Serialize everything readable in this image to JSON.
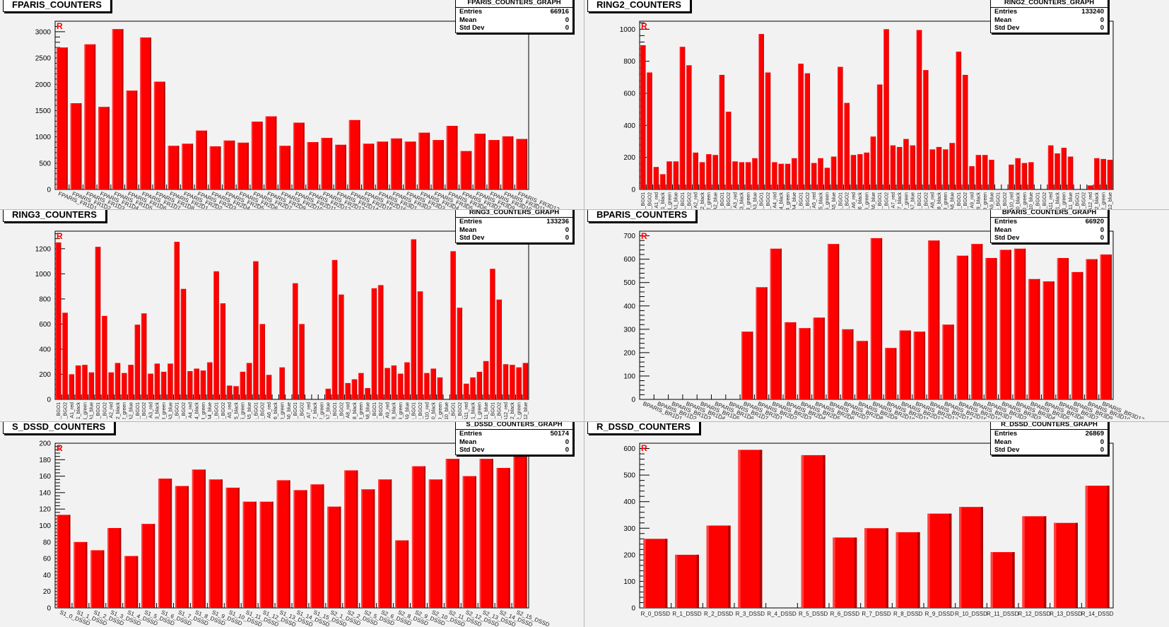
{
  "marker": "R",
  "chart_data": [
    {
      "type": "bar",
      "title": "FPARIS_COUNTERS",
      "stats": {
        "name": "FPARIS_COUNTERS_GRAPH",
        "entries_label": "Entries",
        "entries": "66916",
        "mean_label": "Mean",
        "mean": "0",
        "std_label": "Std Dev",
        "std": "0"
      },
      "ylim": [
        0,
        3200
      ],
      "ytick_step": 500,
      "label_style": "slant",
      "categories": [
        "FPARIS_FR1D1",
        "FPARIS_FR1D2",
        "FPARIS_FR1D3",
        "FPARIS_FR1D4",
        "FPARIS_FR1D5",
        "FPARIS_FR1D6",
        "FPARIS_FR1D7",
        "FPARIS_FR1D8",
        "FPARIS_FR2D1",
        "FPARIS_FR2D2",
        "FPARIS_FR2D3",
        "FPARIS_FR2D4",
        "FPARIS_FR2D5",
        "FPARIS_FR2D6",
        "FPARIS_FR2D7",
        "FPARIS_FR2D9",
        "FPARIS_FR2D10",
        "FPARIS_FR2D11",
        "FPARIS_FR2D12",
        "FPARIS_FR2D13",
        "FPARIS_FR2D14",
        "FPARIS_FR2D15",
        "FPARIS_FR2D16",
        "FPARIS_FR3D1",
        "FPARIS_FR3D2",
        "FPARIS_FR3D3",
        "FPARIS_FR3D4",
        "FPARIS_FR3D5",
        "FPARIS_FR3D6",
        "FPARIS_FR3D7",
        "FPARIS_FR3D9",
        "FPARIS_FR3D10",
        "FPARIS_FR3D11",
        "FPARIS_FR3D12"
      ],
      "values": [
        2700,
        1640,
        2760,
        1570,
        3050,
        1880,
        2890,
        2050,
        830,
        870,
        1120,
        820,
        930,
        890,
        1290,
        1390,
        830,
        1270,
        900,
        980,
        850,
        1320,
        870,
        910,
        970,
        910,
        1080,
        940,
        1210,
        730,
        1060,
        940,
        1010,
        960
      ]
    },
    {
      "type": "bar",
      "title": "RING2_COUNTERS",
      "stats": {
        "name": "RING2_COUNTERS_GRAPH",
        "entries_label": "Entries",
        "entries": "133240",
        "mean_label": "Mean",
        "mean": "0",
        "std_label": "Std Dev",
        "std": "0"
      },
      "ylim": [
        0,
        1050
      ],
      "ytick_step": 200,
      "label_style": "vertical",
      "categories": [
        "1_BGO1",
        "1_BGO2",
        "A1_red",
        "A1_black",
        "A1_green",
        "A1_blue",
        "2_BGO1",
        "2_BGO2",
        "A2_red",
        "A2_black",
        "A2_green",
        "A2_blue",
        "3_BGO1",
        "3_BGO2",
        "A3_red",
        "A3_black",
        "A3_green",
        "A3_blue",
        "4_BGO1",
        "4_BGO2",
        "A4_red",
        "A4_black",
        "A4_green",
        "A4_blue",
        "5_BGO1",
        "5_BGO2",
        "A5_red",
        "A5_black",
        "A5_green",
        "A5_blue",
        "6_BGO1",
        "6_BGO2",
        "A6_red",
        "A6_black",
        "A6_green",
        "A6_blue",
        "7_BGO1",
        "7_BGO2",
        "A7_red",
        "A7_black",
        "A7_green",
        "A7_blue",
        "8_BGO1",
        "8_BGO2",
        "A8_red",
        "A8_black",
        "A8_green",
        "A8_blue",
        "9_BGO1",
        "9_BGO2",
        "A9_red",
        "A9_black",
        "A9_green",
        "A9_blue",
        "10_BGO1",
        "10_BGO2",
        "A10_red",
        "A10_black",
        "A10_green",
        "A10_blue",
        "11_BGO1",
        "11_BGO2",
        "A11_red",
        "A11_black",
        "A11_green",
        "A11_blue",
        "12_BGO1",
        "12_BGO2",
        "A12_red",
        "A12_black",
        "A12_green",
        "A12_blue"
      ],
      "values": [
        900,
        730,
        140,
        95,
        175,
        175,
        890,
        775,
        230,
        170,
        220,
        215,
        715,
        485,
        175,
        170,
        170,
        195,
        970,
        730,
        170,
        160,
        160,
        195,
        785,
        725,
        165,
        195,
        135,
        205,
        765,
        540,
        215,
        220,
        230,
        330,
        655,
        1000,
        275,
        265,
        315,
        275,
        995,
        745,
        250,
        265,
        250,
        290,
        860,
        715,
        145,
        215,
        215,
        185,
        0,
        0,
        155,
        195,
        165,
        170,
        0,
        0,
        275,
        225,
        260,
        205,
        0,
        0,
        25,
        195,
        190,
        185
      ]
    },
    {
      "type": "bar",
      "title": "RING3_COUNTERS",
      "stats": {
        "name": "RING3_COUNTERS_GRAPH",
        "entries_label": "Entries",
        "entries": "133236",
        "mean_label": "Mean",
        "mean": "0",
        "std_label": "Std Dev",
        "std": "0"
      },
      "ylim": [
        0,
        1340
      ],
      "ytick_step": 200,
      "label_style": "vertical",
      "categories": [
        "1_BGO1",
        "1_BGO2",
        "A1_red",
        "A1_black",
        "A1_green",
        "A1_blue",
        "2_BGO1",
        "2_BGO2",
        "A2_red",
        "A2_black",
        "A2_green",
        "A2_blue",
        "3_BGO1",
        "3_BGO2",
        "A3_red",
        "A3_black",
        "A3_green",
        "A3_blue",
        "4_BGO1",
        "4_BGO2",
        "A4_red",
        "A4_black",
        "A4_green",
        "A4_blue",
        "5_BGO1",
        "5_BGO2",
        "A5_red",
        "A5_black",
        "A5_green",
        "A5_blue",
        "6_BGO1",
        "6_BGO2",
        "A6_red",
        "A6_black",
        "A6_green",
        "A6_blue",
        "7_BGO1",
        "7_BGO2",
        "A7_red",
        "A7_black",
        "A7_green",
        "A7_blue",
        "8_BGO1",
        "8_BGO2",
        "A8_red",
        "A8_black",
        "A8_green",
        "A8_blue",
        "9_BGO1",
        "9_BGO2",
        "A9_red",
        "A9_black",
        "A9_green",
        "A9_blue",
        "10_BGO1",
        "10_BGO2",
        "A10_red",
        "A10_black",
        "A10_green",
        "A10_blue",
        "11_BGO1",
        "11_BGO2",
        "A11_red",
        "A11_black",
        "A11_green",
        "A11_blue",
        "12_BGO1",
        "12_BGO2",
        "A12_red",
        "A12_black",
        "A12_green",
        "A12_blue"
      ],
      "values": [
        1250,
        690,
        200,
        270,
        275,
        215,
        1215,
        665,
        215,
        290,
        210,
        275,
        595,
        685,
        205,
        285,
        220,
        285,
        1255,
        880,
        225,
        245,
        230,
        295,
        1020,
        765,
        110,
        105,
        220,
        290,
        1100,
        600,
        195,
        0,
        255,
        0,
        925,
        600,
        0,
        0,
        0,
        85,
        1110,
        835,
        130,
        160,
        210,
        90,
        885,
        910,
        250,
        270,
        205,
        295,
        1275,
        860,
        210,
        245,
        175,
        0,
        1180,
        730,
        125,
        175,
        220,
        305,
        1040,
        795,
        280,
        275,
        255,
        290
      ]
    },
    {
      "type": "bar",
      "title": "BPARIS_COUNTERS",
      "stats": {
        "name": "BPARIS_COUNTERS_GRAPH",
        "entries_label": "Entries",
        "entries": "66920",
        "mean_label": "Mean",
        "mean": "0",
        "std_label": "Std Dev",
        "std": "0"
      },
      "ylim": [
        0,
        720
      ],
      "ytick_step": 100,
      "label_style": "slant",
      "categories": [
        "BPARIS_BR1D1",
        "BPARIS_BR1D2",
        "BPARIS_BR1D3",
        "BPARIS_BR1D4",
        "BPARIS_BR1D5",
        "BPARIS_BR1D6",
        "BPARIS_BR1D7",
        "BPARIS_BR2D1",
        "BPARIS_BR2D2",
        "BPARIS_BR2D3",
        "BPARIS_BR2D4",
        "BPARIS_BR2D5",
        "BPARIS_BR2D6",
        "BPARIS_BR2D7",
        "BPARIS_BR2D8",
        "BPARIS_BR2D9",
        "BPARIS_BR2D10",
        "BPARIS_BR2D11",
        "BPARIS_BR2D12",
        "BPARIS_BR2D13",
        "BPARIS_BR2D14",
        "BPARIS_BR2D15",
        "BPARIS_BR2D16",
        "BPARIS_BR3D1",
        "BPARIS_BR3D2",
        "BPARIS_BR3D3",
        "BPARIS_BR3D4",
        "BPARIS_BR3D5",
        "BPARIS_BR3D6",
        "BPARIS_BR3D7",
        "BPARIS_BR3D9",
        "BPARIS_BR3D10",
        "BPARIS_BR3D12"
      ],
      "values": [
        0,
        0,
        0,
        0,
        0,
        0,
        0,
        290,
        480,
        645,
        330,
        305,
        350,
        665,
        300,
        250,
        690,
        220,
        295,
        290,
        680,
        320,
        615,
        665,
        605,
        640,
        645,
        515,
        505,
        605,
        545,
        600,
        620
      ]
    },
    {
      "type": "bar",
      "title": "S_DSSD_COUNTERS",
      "stats": {
        "name": "S_DSSD_COUNTERS_GRAPH",
        "entries_label": "Entries",
        "entries": "50174",
        "mean_label": "Mean",
        "mean": "0",
        "std_label": "Std Dev",
        "std": "0"
      },
      "ylim": [
        0,
        200
      ],
      "ytick_step": 20,
      "label_style": "slant",
      "categories": [
        "S1_0_DSSD",
        "S1_1_DSSD",
        "S1_2_DSSD",
        "S1_3_DSSD",
        "S1_4_DSSD",
        "S1_5_DSSD",
        "S1_6_DSSD",
        "S1_7_DSSD",
        "S1_8_DSSD",
        "S1_9_DSSD",
        "S1_10_DSSD",
        "S1_11_DSSD",
        "S1_12_DSSD",
        "S1_13_DSSD",
        "S1_14_DSSD",
        "S1_15_DSSD",
        "S2_1_DSSD",
        "S2_2_DSSD",
        "S2_5_DSSD",
        "S2_6_DSSD",
        "S2_8_DSSD",
        "S2_9_DSSD",
        "S2_10_DSSD",
        "S2_11_DSSD",
        "S2_12_DSSD",
        "S2_13_DSSD",
        "S2_14_DSSD",
        "S2_15_DSSD"
      ],
      "values": [
        113,
        80,
        70,
        97,
        63,
        102,
        157,
        148,
        168,
        156,
        146,
        129,
        129,
        155,
        143,
        150,
        123,
        167,
        144,
        156,
        82,
        172,
        156,
        181,
        160,
        181,
        170,
        185
      ]
    },
    {
      "type": "bar",
      "title": "R_DSSD_COUNTERS",
      "stats": {
        "name": "R_DSSD_COUNTERS_GRAPH",
        "entries_label": "Entries",
        "entries": "26869",
        "mean_label": "Mean",
        "mean": "0",
        "std_label": "Std Dev",
        "std": "0"
      },
      "ylim": [
        0,
        620
      ],
      "ytick_step": 100,
      "label_style": "horizontal",
      "categories": [
        "R_0_DSSD",
        "R_1_DSSD",
        "R_2_DSSD",
        "R_3_DSSD",
        "R_4_DSSD",
        "R_5_DSSD",
        "R_6_DSSD",
        "R_7_DSSD",
        "R_8_DSSD",
        "R_9_DSSD",
        "R_10_DSSD",
        "R_11_DSSD",
        "R_12_DSSD",
        "R_13_DSSD",
        "R_14_DSSD"
      ],
      "values": [
        260,
        200,
        310,
        595,
        0,
        575,
        265,
        300,
        285,
        355,
        380,
        210,
        345,
        320,
        460
      ]
    }
  ]
}
